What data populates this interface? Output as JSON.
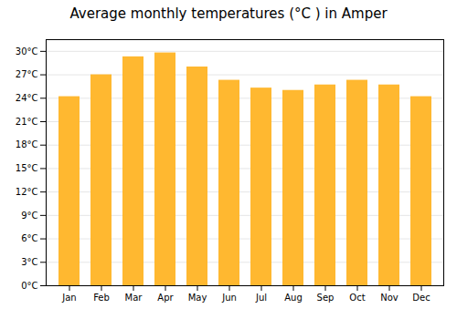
{
  "chart_data": {
    "type": "bar",
    "title": "Average monthly temperatures (°C ) in Amper",
    "categories": [
      "Jan",
      "Feb",
      "Mar",
      "Apr",
      "May",
      "Jun",
      "Jul",
      "Aug",
      "Sep",
      "Oct",
      "Nov",
      "Dec"
    ],
    "values": [
      24.2,
      27.0,
      29.3,
      29.8,
      28.0,
      26.3,
      25.3,
      25.0,
      25.7,
      26.3,
      25.7,
      24.2
    ],
    "color": "#FFB830",
    "ylim": [
      0,
      31.5
    ],
    "yticks": [
      {
        "value": 0,
        "label": "0°C"
      },
      {
        "value": 3,
        "label": "3°C"
      },
      {
        "value": 6,
        "label": "6°C"
      },
      {
        "value": 9,
        "label": "9°C"
      },
      {
        "value": 12,
        "label": "12°C"
      },
      {
        "value": 15,
        "label": "15°C"
      },
      {
        "value": 18,
        "label": "18°C"
      },
      {
        "value": 21,
        "label": "21°C"
      },
      {
        "value": 24,
        "label": "24°C"
      },
      {
        "value": 27,
        "label": "27°C"
      },
      {
        "value": 30,
        "label": "30°C"
      }
    ],
    "grid": true
  }
}
